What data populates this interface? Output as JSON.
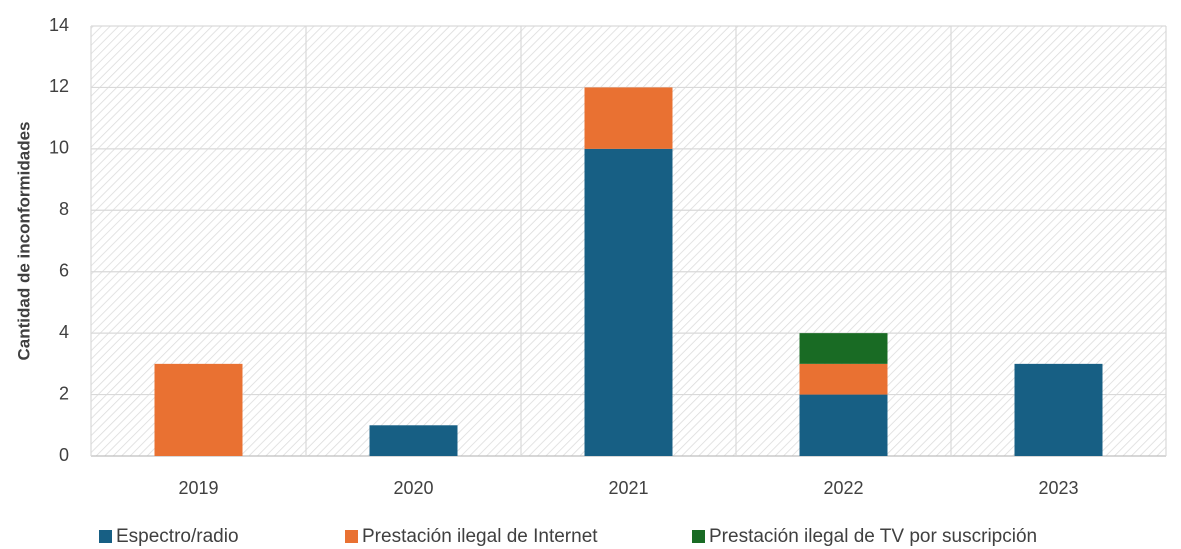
{
  "chart_data": {
    "type": "bar",
    "stacked": true,
    "categories": [
      "2019",
      "2020",
      "2021",
      "2022",
      "2023"
    ],
    "series": [
      {
        "name": "Espectro/radio",
        "values": [
          0,
          1,
          10,
          2,
          3
        ],
        "color": "#175f84"
      },
      {
        "name": "Prestación ilegal de Internet",
        "values": [
          3,
          0,
          2,
          1,
          0
        ],
        "color": "#e97132"
      },
      {
        "name": "Prestación ilegal de TV por suscripción",
        "values": [
          0,
          0,
          0,
          1,
          0
        ],
        "color": "#196b24"
      }
    ],
    "title": "",
    "xlabel": "",
    "ylabel": "Cantidad de inconformidades",
    "ylim": [
      0,
      14
    ],
    "yticks": [
      "0",
      "2",
      "4",
      "6",
      "8",
      "10",
      "12",
      "14"
    ],
    "grid": true,
    "legend_position": "bottom"
  }
}
